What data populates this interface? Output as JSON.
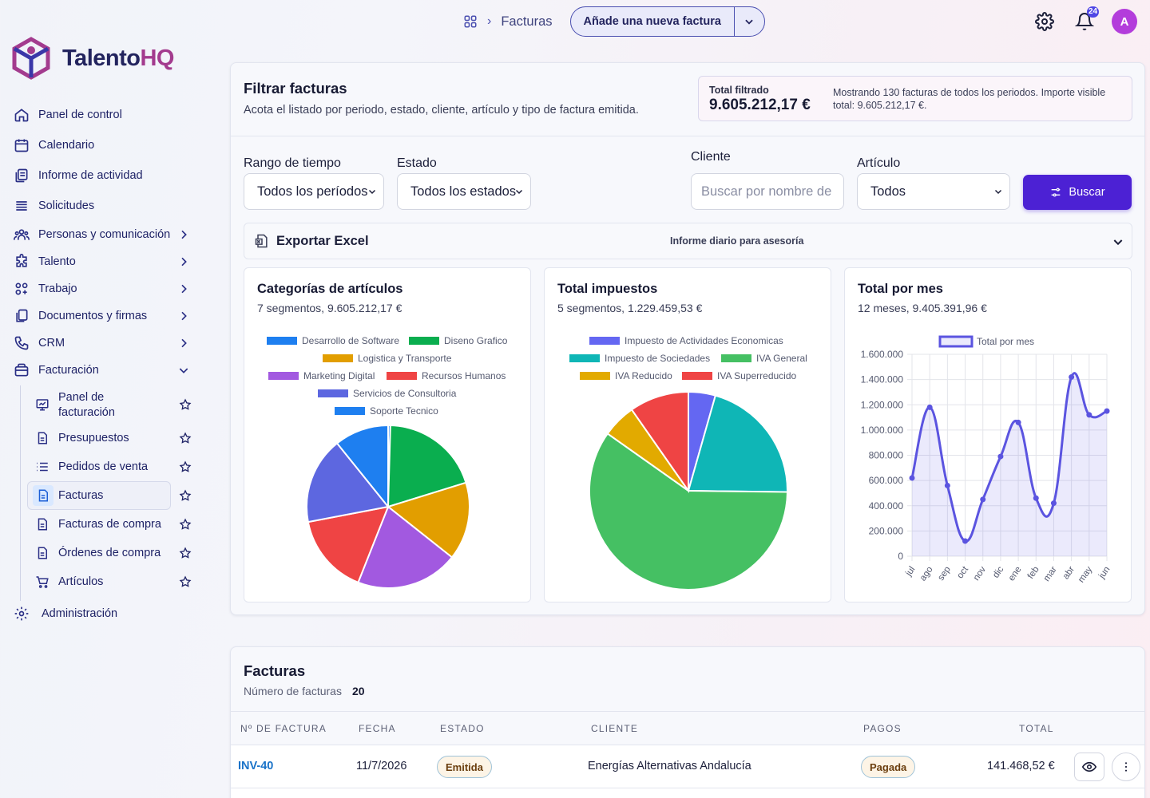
{
  "brand": {
    "name_a": "Talento",
    "name_b": "HQ"
  },
  "sidebar": {
    "items": [
      {
        "label": "Panel de control",
        "icon": "home-icon"
      },
      {
        "label": "Calendario",
        "icon": "calendar-icon"
      },
      {
        "label": "Informe de actividad",
        "icon": "report-icon"
      },
      {
        "label": "Solicitudes",
        "icon": "list-icon"
      },
      {
        "label": "Personas y comunicación",
        "icon": "people-icon"
      },
      {
        "label": "Talento",
        "icon": "puzzle-icon"
      },
      {
        "label": "Trabajo",
        "icon": "apps-icon"
      },
      {
        "label": "Documentos y firmas",
        "icon": "documents-icon"
      },
      {
        "label": "CRM",
        "icon": "phone-icon"
      },
      {
        "label": "Facturación",
        "icon": "wallet-icon"
      }
    ],
    "billing_sub": [
      {
        "label": "Panel de facturación",
        "icon": "dashboard-icon"
      },
      {
        "label": "Presupuestos",
        "icon": "file-icon"
      },
      {
        "label": "Pedidos de venta",
        "icon": "list-icon"
      },
      {
        "label": "Facturas",
        "icon": "invoice-icon"
      },
      {
        "label": "Facturas de compra",
        "icon": "file-icon"
      },
      {
        "label": "Órdenes de compra",
        "icon": "file-icon"
      },
      {
        "label": "Artículos",
        "icon": "cart-icon"
      }
    ],
    "admin": {
      "label": "Administración",
      "icon": "gear-icon"
    }
  },
  "topbar": {
    "breadcrumb_current": "Facturas",
    "new_invoice_label": "Añade una nueva factura",
    "notifications_count": "24",
    "avatar_initial": "A"
  },
  "filter": {
    "title": "Filtrar facturas",
    "subtitle": "Acota el listado por periodo, estado, cliente, artículo y tipo de factura emitida.",
    "total_label": "Total filtrado",
    "total_value": "9.605.212,17 €",
    "total_desc": "Mostrando 130 facturas de todos los periodos. Importe visible total: 9.605.212,17 €.",
    "range_label": "Rango de tiempo",
    "range_value": "Todos los períodos",
    "status_label": "Estado",
    "status_value": "Todos los estados",
    "client_label": "Cliente",
    "client_placeholder": "Buscar por nombre de",
    "article_label": "Artículo",
    "article_value": "Todos",
    "search_label": "Buscar",
    "export_label": "Exportar Excel",
    "export_right": "Informe diario para asesoría"
  },
  "charts": {
    "categories": {
      "title": "Categorías de artículos",
      "subtitle": "7 segmentos, 9.605.212,17 €"
    },
    "taxes": {
      "title": "Total impuestos",
      "subtitle": "5 segmentos, 1.229.459,53 €"
    },
    "monthly": {
      "title": "Total por mes",
      "subtitle": "12 meses, 9.405.391,96 €"
    }
  },
  "chart_data": [
    {
      "type": "pie",
      "labels": [
        "Desarrollo de Software",
        "Diseno Grafico",
        "Logistica y Transporte",
        "Marketing Digital",
        "Recursos Humanos",
        "Servicios de Consultoria",
        "Soporte Tecnico"
      ],
      "values": [
        0.4,
        17.8,
        13.9,
        18.3,
        14.4,
        15.5,
        9.7
      ],
      "colors": [
        "#1e7ff0",
        "#0aae4f",
        "#e29e00",
        "#a259e0",
        "#ef4444",
        "#5d67e0",
        "#1e7ff0"
      ],
      "legend_position": "top"
    },
    {
      "type": "pie",
      "labels": [
        "Impuesto de Actividades Economicas",
        "Impuesto de Sociedades",
        "IVA General",
        "IVA Reducido",
        "IVA Superreducido"
      ],
      "values": [
        4.4,
        20.8,
        59.6,
        5.5,
        9.7
      ],
      "colors": [
        "#6467f2",
        "#0fb6b6",
        "#45c063",
        "#e2aa00",
        "#ef4444"
      ],
      "legend_position": "top"
    },
    {
      "type": "area",
      "categories": [
        "jul",
        "ago",
        "sep",
        "oct",
        "nov",
        "dic",
        "ene",
        "feb",
        "mar",
        "abr",
        "may",
        "jun"
      ],
      "series": [
        {
          "name": "Total por mes",
          "values": [
            620000,
            1180000,
            560000,
            120000,
            450000,
            790000,
            1060000,
            460000,
            420000,
            1420000,
            1120000,
            1150000
          ]
        }
      ],
      "ylim": [
        0,
        1600000
      ],
      "y_ticks": [
        "0",
        "200.000",
        "400.000",
        "600.000",
        "800.000",
        "1.000.000",
        "1.200.000",
        "1.400.000",
        "1.600.000"
      ],
      "grid": true,
      "color": "#5b54e0",
      "legend_position": "top"
    }
  ],
  "table": {
    "title": "Facturas",
    "count_label": "Número de facturas",
    "count_value": "20",
    "headers": [
      "Nº DE FACTURA",
      "FECHA",
      "ESTADO",
      "CLIENTE",
      "PAGOS",
      "TOTAL"
    ],
    "rows": [
      {
        "number": "INV-40",
        "date": "11/7/2026",
        "status": "Emitida",
        "client": "Energías Alternativas Andalucía",
        "payment": "Pagada",
        "total": "141.468,52 €"
      }
    ]
  }
}
